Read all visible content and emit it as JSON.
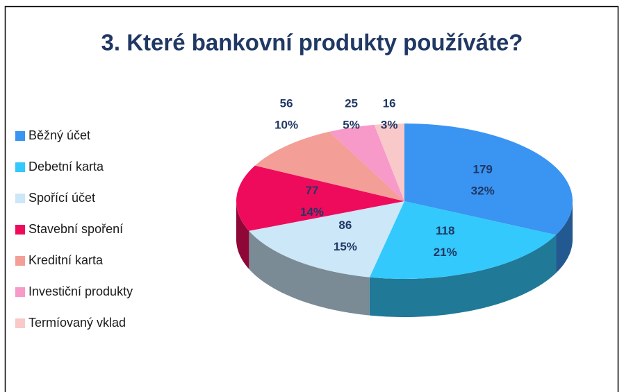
{
  "chart_data": {
    "type": "pie",
    "title": "3. Které bankovní produkty používáte?",
    "categories": [
      "Běžný účet",
      "Debetní karta",
      "Spořící účet",
      "Stavební spoření",
      "Kreditní karta",
      "Investiční produkty",
      "Termíovaný vklad"
    ],
    "values": [
      179,
      118,
      86,
      77,
      56,
      25,
      16
    ],
    "percent_labels": [
      "32%",
      "21%",
      "15%",
      "14%",
      "10%",
      "5%",
      "3%"
    ],
    "colors": [
      "#3a94f2",
      "#33c9fc",
      "#cbe7f8",
      "#ef0b5c",
      "#f49e98",
      "#f799c9",
      "#f9c9c9"
    ],
    "legend": "left"
  }
}
